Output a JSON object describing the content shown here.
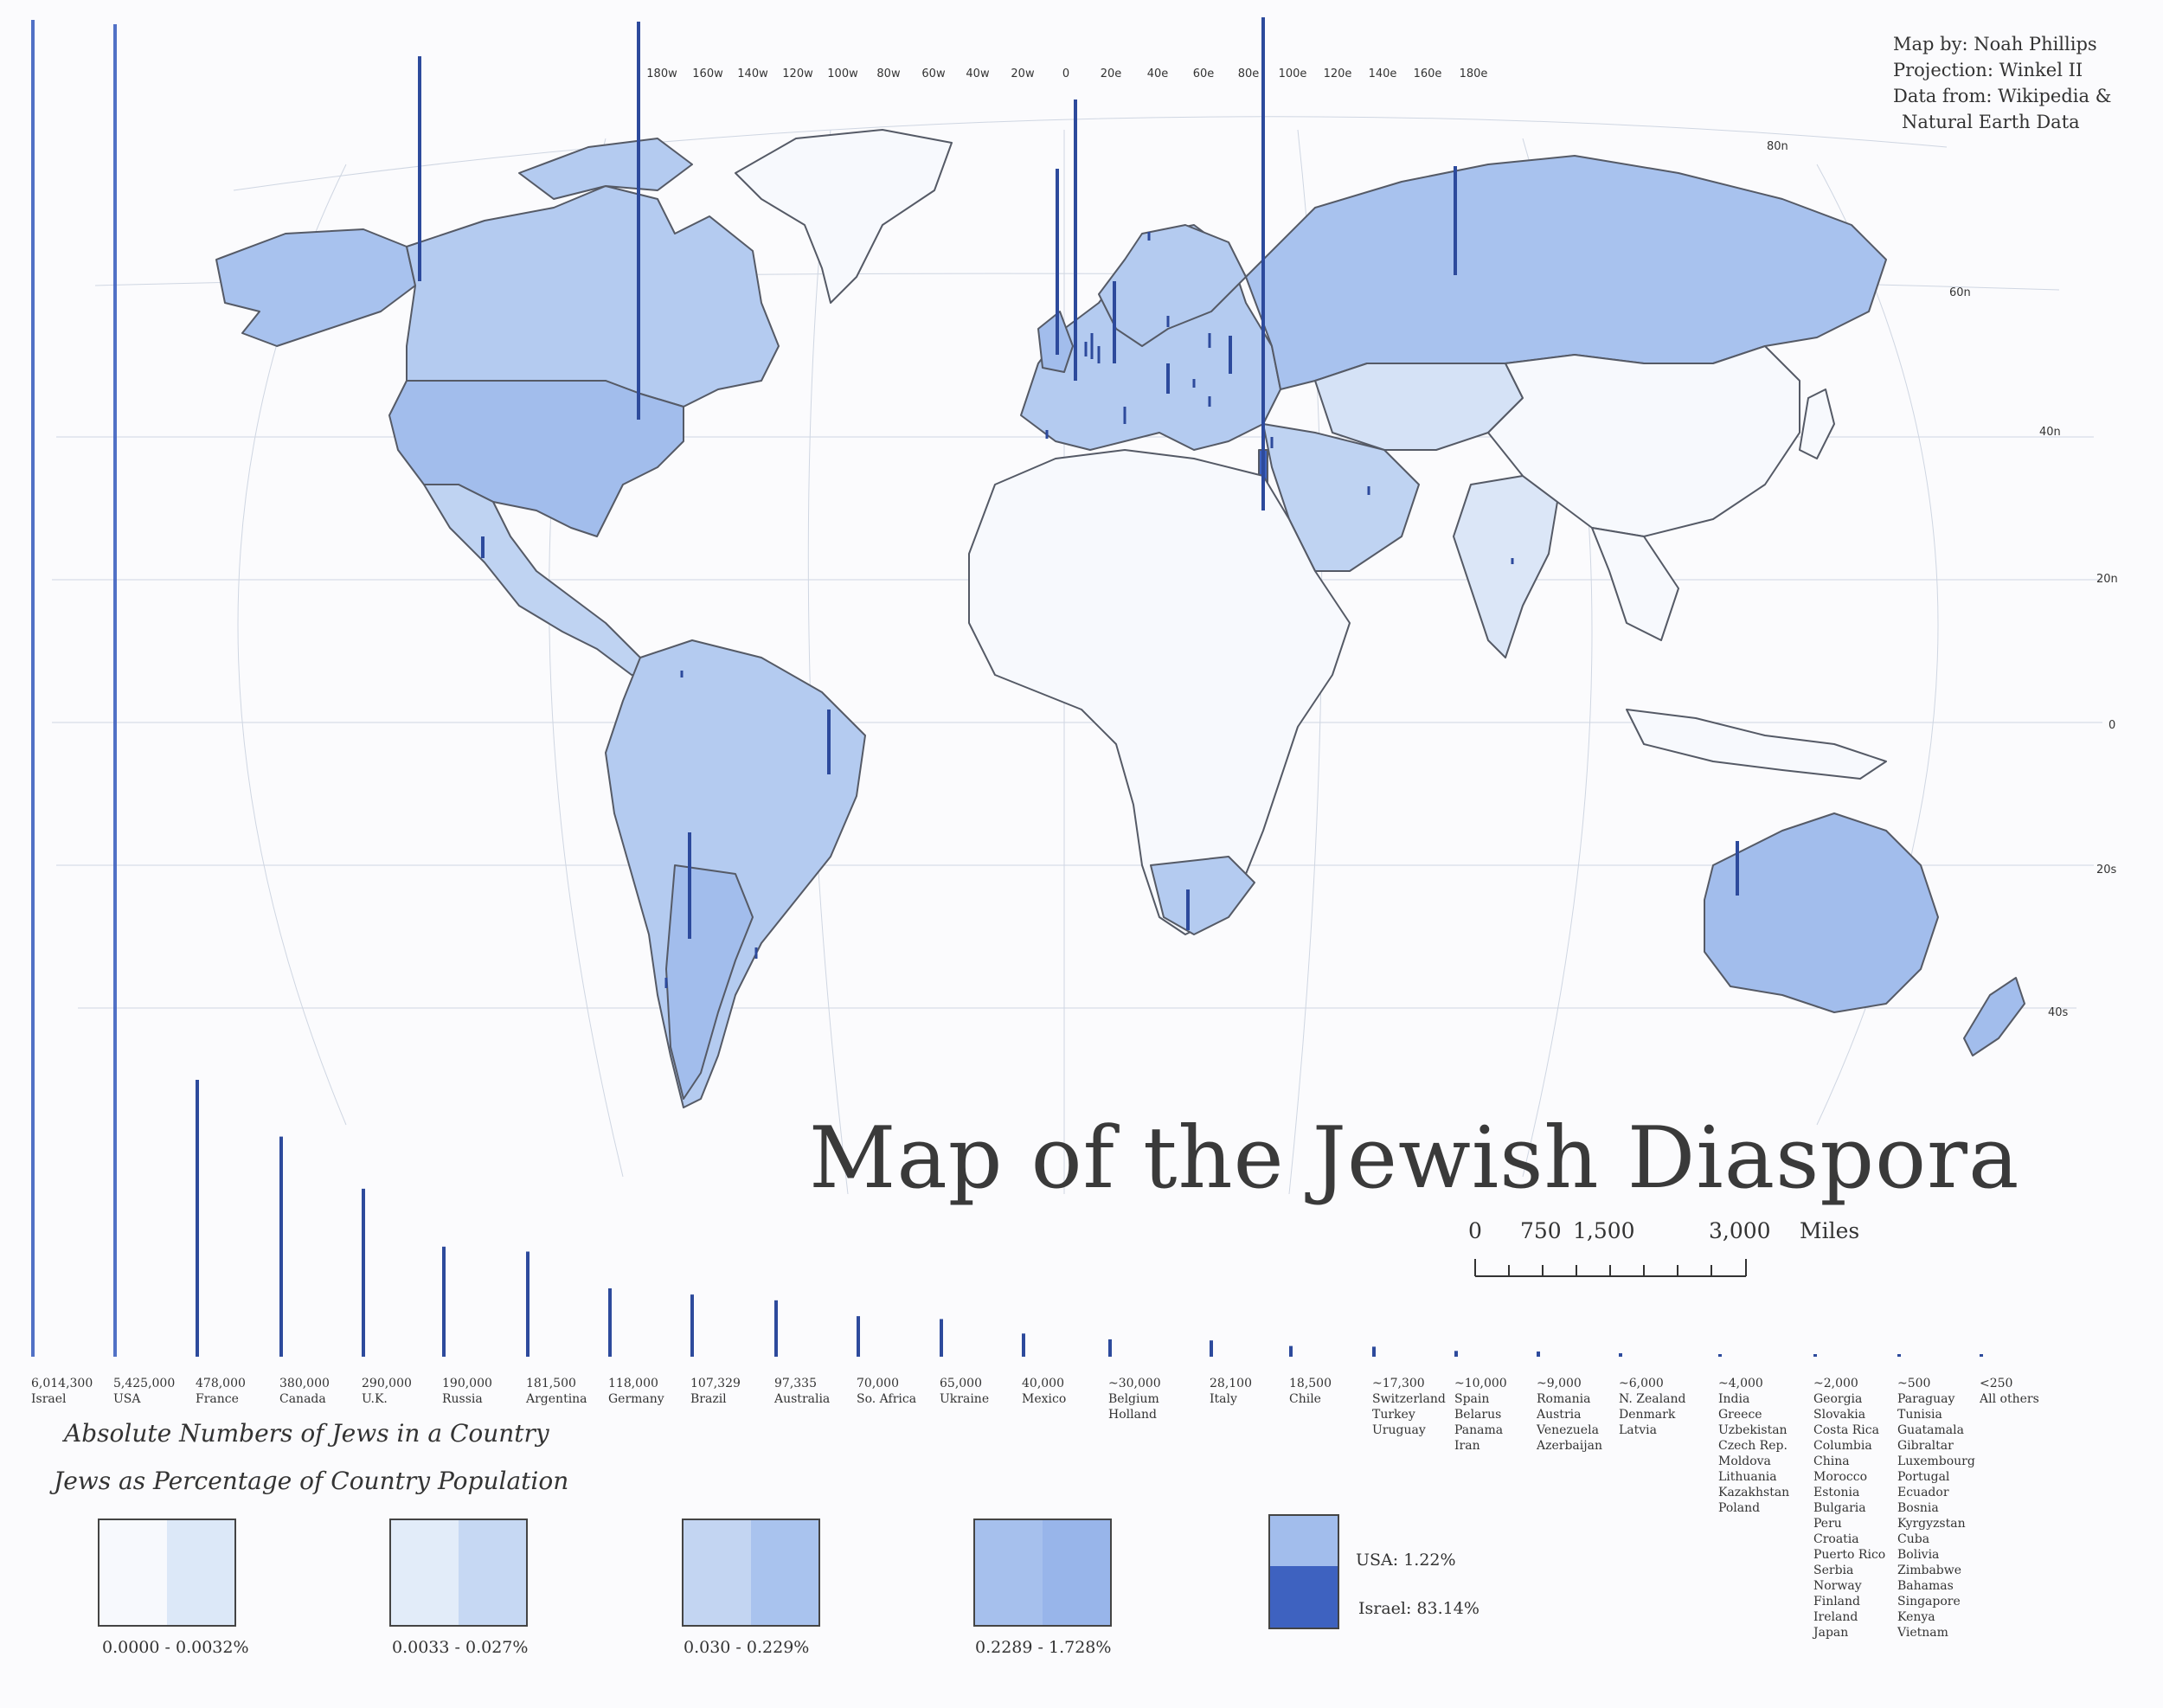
{
  "credits": {
    "map_by": "Map by: Noah Phillips",
    "projection": "Projection: Winkel II",
    "data_from_1": "Data from: Wikipedia &",
    "data_from_2": "Natural Earth Data"
  },
  "title": "Map of the Jewish Diaspora",
  "scale_bar": {
    "ticks": [
      "0",
      "750",
      "1,500",
      "3,000"
    ],
    "unit": "Miles"
  },
  "graticule": {
    "longitudes": [
      "180w",
      "160w",
      "140w",
      "120w",
      "100w",
      "80w",
      "60w",
      "40w",
      "20w",
      "0",
      "20e",
      "40e",
      "60e",
      "80e",
      "100e",
      "120e",
      "140e",
      "160e",
      "180e"
    ],
    "latitudes": [
      "80n",
      "60n",
      "40n",
      "20n",
      "0",
      "20s",
      "40s"
    ]
  },
  "colors": {
    "background": "#fbfbfd",
    "class_1": "#f4f7fc",
    "class_2": "#dbe6f7",
    "class_3": "#bacff0",
    "class_4": "#9db9ea",
    "bar": "#2d4a9c",
    "israel": "#3e62c0",
    "usa": "#a2bdec",
    "border": "#555a66"
  },
  "population_bars": [
    {
      "count": "6,014,300",
      "countries": [
        "Israel"
      ],
      "value": 6014300
    },
    {
      "count": "5,425,000",
      "countries": [
        "USA"
      ],
      "value": 5425000
    },
    {
      "count": "478,000",
      "countries": [
        "France"
      ],
      "value": 478000
    },
    {
      "count": "380,000",
      "countries": [
        "Canada"
      ],
      "value": 380000
    },
    {
      "count": "290,000",
      "countries": [
        "U.K."
      ],
      "value": 290000
    },
    {
      "count": "190,000",
      "countries": [
        "Russia"
      ],
      "value": 190000
    },
    {
      "count": "181,500",
      "countries": [
        "Argentina"
      ],
      "value": 181500
    },
    {
      "count": "118,000",
      "countries": [
        "Germany"
      ],
      "value": 118000
    },
    {
      "count": "107,329",
      "countries": [
        "Brazil"
      ],
      "value": 107329
    },
    {
      "count": "97,335",
      "countries": [
        "Australia"
      ],
      "value": 97335
    },
    {
      "count": "70,000",
      "countries": [
        "So. Africa"
      ],
      "value": 70000
    },
    {
      "count": "65,000",
      "countries": [
        "Ukraine"
      ],
      "value": 65000
    },
    {
      "count": "40,000",
      "countries": [
        "Mexico"
      ],
      "value": 40000
    },
    {
      "count": "~30,000",
      "countries": [
        "Belgium",
        "Holland"
      ],
      "value": 30000
    },
    {
      "count": "28,100",
      "countries": [
        "Italy"
      ],
      "value": 28100
    },
    {
      "count": "18,500",
      "countries": [
        "Chile"
      ],
      "value": 18500
    },
    {
      "count": "~17,300",
      "countries": [
        "Switzerland",
        "Turkey",
        "Uruguay"
      ],
      "value": 17300
    },
    {
      "count": "~10,000",
      "countries": [
        "Spain",
        "Belarus",
        "Panama",
        "Iran"
      ],
      "value": 10000
    },
    {
      "count": "~9,000",
      "countries": [
        "Romania",
        "Austria",
        "Venezuela",
        "Azerbaijan"
      ],
      "value": 9000
    },
    {
      "count": "~6,000",
      "countries": [
        "N. Zealand",
        "Denmark",
        "Latvia"
      ],
      "value": 6000
    },
    {
      "count": "~4,000",
      "countries": [
        "India",
        "Greece",
        "Uzbekistan",
        "Czech Rep.",
        "Moldova",
        "Lithuania",
        "Kazakhstan",
        "Poland"
      ],
      "value": 4000
    },
    {
      "count": "~2,000",
      "countries": [
        "Georgia",
        "Slovakia",
        "Costa Rica",
        "Columbia",
        "China",
        "Morocco",
        "Estonia",
        "Bulgaria",
        "Peru",
        "Croatia",
        "Puerto Rico",
        "Serbia",
        "Norway",
        "Finland",
        "Ireland",
        "Japan"
      ],
      "value": 2000
    },
    {
      "count": "~500",
      "countries": [
        "Paraguay",
        "Tunisia",
        "Guatamala",
        "Gibraltar",
        "Luxembourg",
        "Portugal",
        "Ecuador",
        "Bosnia",
        "Kyrgyzstan",
        "Cuba",
        "Bolivia",
        "Zimbabwe",
        "Bahamas",
        "Singapore",
        "Kenya",
        "Vietnam"
      ],
      "value": 500
    },
    {
      "count": "<250",
      "countries": [
        "All others"
      ],
      "value": 250
    }
  ],
  "legend": {
    "absolute_heading": "Absolute Numbers of Jews in a Country",
    "percent_heading": "Jews as Percentage of Country Population",
    "classes": [
      {
        "label": "0.0000 - 0.0032%",
        "left": "#f7f9fd",
        "right": "#dce8f8"
      },
      {
        "label": "0.0033 - 0.027%",
        "left": "#e2ecf9",
        "right": "#c6d8f3"
      },
      {
        "label": "0.030 - 0.229%",
        "left": "#c3d5f2",
        "right": "#a9c3ee"
      },
      {
        "label": "0.2289 - 1.728%",
        "left": "#a6c0ed",
        "right": "#98b5ea"
      }
    ],
    "examples": {
      "usa": "USA: 1.22%",
      "israel": "Israel: 83.14%"
    }
  }
}
